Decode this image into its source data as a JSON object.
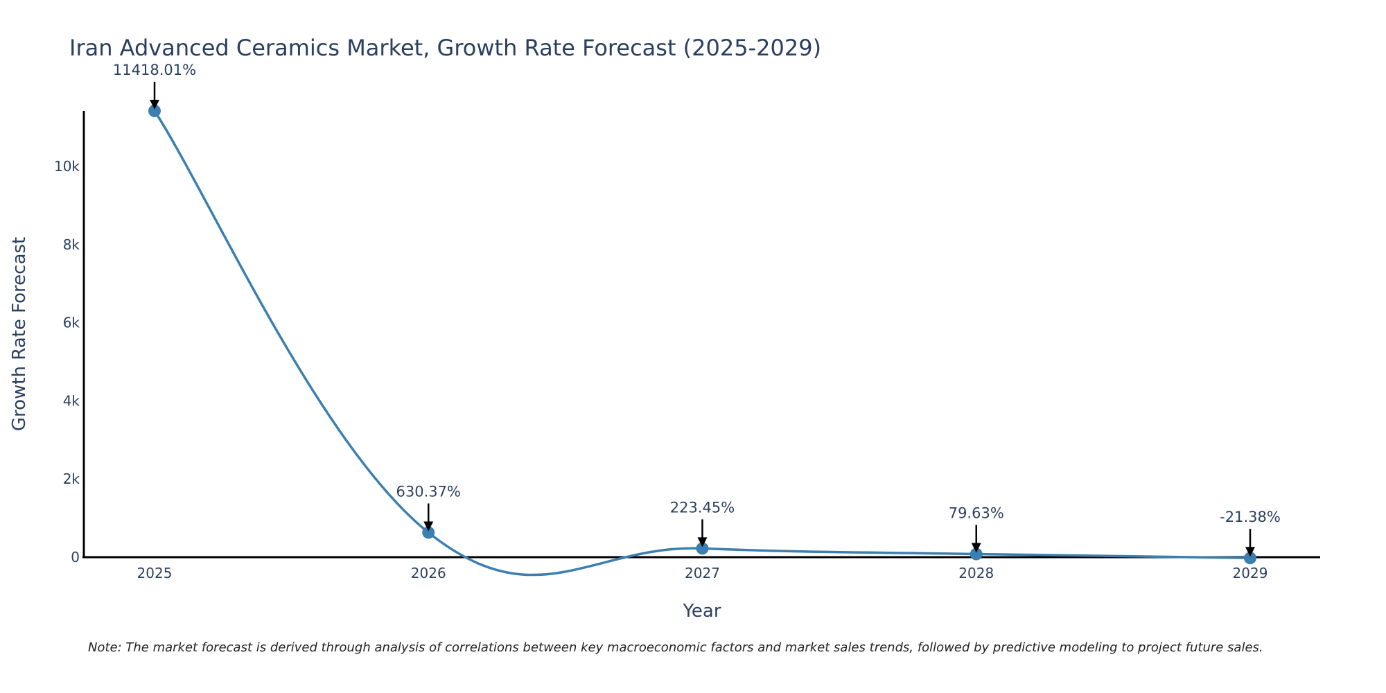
{
  "colors": {
    "line": "#3b7fb0",
    "marker": "#3b7fb0",
    "axis": "#000000",
    "text": "#2a3f5f",
    "arrow": "#000000"
  },
  "chart_data": {
    "type": "line",
    "title": "Iran Advanced Ceramics Market, Growth Rate Forecast (2025-2029)",
    "xlabel": "Year",
    "ylabel": "Growth Rate Forecast",
    "categories": [
      "2025",
      "2026",
      "2027",
      "2028",
      "2029"
    ],
    "values": [
      11418.01,
      630.37,
      223.45,
      79.63,
      -21.38
    ],
    "data_labels": [
      "11418.01%",
      "630.37%",
      "223.45%",
      "79.63%",
      "-21.38%"
    ],
    "y_ticks": [
      0,
      2000,
      4000,
      6000,
      8000,
      10000
    ],
    "y_tick_labels": [
      "0",
      "2k",
      "4k",
      "6k",
      "8k",
      "10k"
    ],
    "ylim": [
      0,
      11418.01
    ],
    "line_shape": "spline",
    "grid": false,
    "note": "Note: The market forecast is derived through analysis of correlations between key macroeconomic factors and market sales trends, followed by predictive modeling to project future sales."
  }
}
